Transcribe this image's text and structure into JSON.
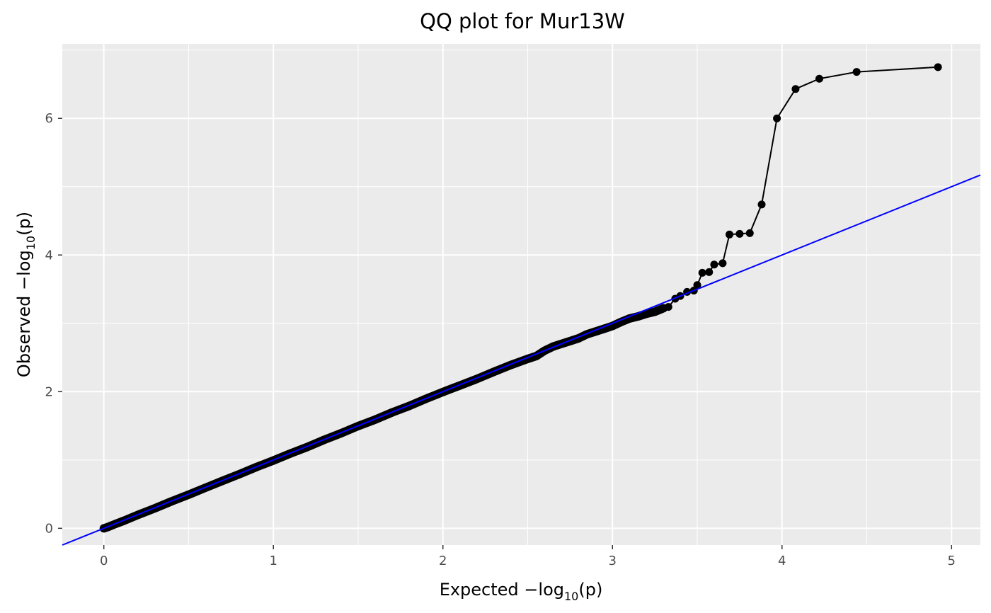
{
  "chart_data": {
    "type": "scatter",
    "title": "QQ plot for Mur13W",
    "xlabel": {
      "prefix": "Expected  −log",
      "sub": "10",
      "suffix": "(p)"
    },
    "ylabel": {
      "prefix": "Observed  −log",
      "sub": "10",
      "suffix": "(p)"
    },
    "xlim": [
      -0.245,
      5.17
    ],
    "ylim": [
      -0.245,
      7.09
    ],
    "x_ticks": [
      0,
      1,
      2,
      3,
      4,
      5
    ],
    "x_tick_labels": [
      "0",
      "1",
      "2",
      "3",
      "4",
      "5"
    ],
    "y_ticks": [
      0,
      2,
      4,
      6
    ],
    "y_tick_labels": [
      "0",
      "2",
      "4",
      "6"
    ],
    "grid": true,
    "reference_line": {
      "slope": 1,
      "intercept": 0,
      "color": "#0000ff"
    },
    "colors": {
      "panel": "#ebebeb",
      "grid": "#ffffff",
      "points": "#000000",
      "reference": "#0000ff"
    },
    "series": [
      {
        "points": [
          [
            0.0,
            0.0
          ],
          [
            0.025,
            0.02
          ],
          [
            0.06,
            0.055
          ],
          [
            0.12,
            0.112
          ],
          [
            0.2,
            0.195
          ],
          [
            0.3,
            0.292
          ],
          [
            0.4,
            0.395
          ],
          [
            0.5,
            0.492
          ],
          [
            0.6,
            0.594
          ],
          [
            0.7,
            0.695
          ],
          [
            0.8,
            0.793
          ],
          [
            0.9,
            0.897
          ],
          [
            1.0,
            0.992
          ],
          [
            1.1,
            1.095
          ],
          [
            1.2,
            1.19
          ],
          [
            1.3,
            1.296
          ],
          [
            1.4,
            1.392
          ],
          [
            1.5,
            1.497
          ],
          [
            1.6,
            1.59
          ],
          [
            1.7,
            1.695
          ],
          [
            1.8,
            1.79
          ],
          [
            1.9,
            1.895
          ],
          [
            2.0,
            1.995
          ],
          [
            2.1,
            2.09
          ],
          [
            2.2,
            2.185
          ],
          [
            2.3,
            2.29
          ],
          [
            2.4,
            2.39
          ],
          [
            2.5,
            2.48
          ],
          [
            2.55,
            2.52
          ],
          [
            2.6,
            2.6
          ],
          [
            2.65,
            2.66
          ],
          [
            2.7,
            2.7
          ],
          [
            2.75,
            2.74
          ],
          [
            2.8,
            2.78
          ],
          [
            2.85,
            2.84
          ],
          [
            2.9,
            2.88
          ],
          [
            2.95,
            2.92
          ],
          [
            3.0,
            2.96
          ],
          [
            3.05,
            3.02
          ],
          [
            3.1,
            3.07
          ],
          [
            3.15,
            3.1
          ],
          [
            3.2,
            3.14
          ],
          [
            3.25,
            3.17
          ],
          [
            3.3,
            3.22
          ],
          [
            3.33,
            3.24
          ],
          [
            3.37,
            3.36
          ],
          [
            3.4,
            3.4
          ],
          [
            3.44,
            3.46
          ],
          [
            3.48,
            3.48
          ],
          [
            3.5,
            3.56
          ],
          [
            3.53,
            3.74
          ],
          [
            3.57,
            3.75
          ],
          [
            3.6,
            3.86
          ],
          [
            3.65,
            3.88
          ],
          [
            3.69,
            4.3
          ],
          [
            3.75,
            4.31
          ],
          [
            3.81,
            4.32
          ],
          [
            3.88,
            4.74
          ],
          [
            3.97,
            6.0
          ],
          [
            4.08,
            6.43
          ],
          [
            4.22,
            6.58
          ],
          [
            4.44,
            6.68
          ],
          [
            4.92,
            6.75
          ]
        ]
      }
    ]
  }
}
